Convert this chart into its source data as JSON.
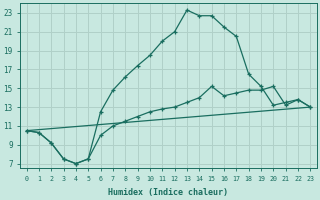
{
  "xlabel": "Humidex (Indice chaleur)",
  "background_color": "#c8e8e0",
  "grid_color": "#b0d0c8",
  "line_color": "#1a6e60",
  "xlim": [
    -0.5,
    23.5
  ],
  "ylim": [
    6.5,
    24
  ],
  "xticks": [
    0,
    1,
    2,
    3,
    4,
    5,
    6,
    7,
    8,
    9,
    10,
    11,
    12,
    13,
    14,
    15,
    16,
    17,
    18,
    19,
    20,
    21,
    22,
    23
  ],
  "yticks": [
    7,
    9,
    11,
    13,
    15,
    17,
    19,
    21,
    23
  ],
  "curve1_x": [
    0,
    1,
    2,
    3,
    4,
    5,
    6,
    7,
    8,
    9,
    10,
    11,
    12,
    13,
    14,
    15,
    16,
    17,
    18,
    19,
    20,
    21,
    22,
    23
  ],
  "curve1_y": [
    10.5,
    10.3,
    9.2,
    7.5,
    7.0,
    7.5,
    12.5,
    14.8,
    16.2,
    17.4,
    18.5,
    20.0,
    21.0,
    23.3,
    22.7,
    22.7,
    21.5,
    20.5,
    16.5,
    15.2,
    13.2,
    13.5,
    13.8,
    13.0
  ],
  "curve2_x": [
    0,
    1,
    2,
    3,
    4,
    5,
    6,
    7,
    8,
    9,
    10,
    11,
    12,
    13,
    14,
    15,
    16,
    17,
    18,
    19,
    20,
    21,
    22,
    23
  ],
  "curve2_y": [
    10.5,
    10.3,
    9.2,
    7.5,
    7.0,
    7.5,
    10.0,
    11.0,
    11.5,
    12.0,
    12.5,
    12.8,
    13.0,
    13.5,
    14.0,
    15.2,
    14.2,
    14.5,
    14.8,
    14.8,
    15.2,
    13.2,
    13.8,
    13.0
  ],
  "curve3_x": [
    0,
    23
  ],
  "curve3_y": [
    10.5,
    13.0
  ]
}
